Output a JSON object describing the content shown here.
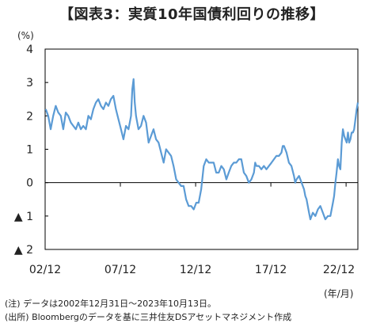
{
  "title": "【図表3：実質10年国債利回りの推移】",
  "unit_label": "(%)",
  "x_unit_label": "(年/月)",
  "notes": [
    "(注) データは2002年12月31日〜2023年10月13日。",
    "(出所) Bloombergのデータを基に三井住友DSアセットマネジメント作成"
  ],
  "chart_data": {
    "type": "line",
    "title": "実質10年国債利回りの推移",
    "xlabel": "(年/月)",
    "ylabel": "(%)",
    "ylim": [
      -2,
      4
    ],
    "xlim": [
      "2002-12-31",
      "2023-10-13"
    ],
    "grid": false,
    "y_ticks": [
      {
        "value": 4,
        "label": "4"
      },
      {
        "value": 3,
        "label": "3"
      },
      {
        "value": 2,
        "label": "2"
      },
      {
        "value": 1,
        "label": "1"
      },
      {
        "value": 0,
        "label": "0"
      },
      {
        "value": -1,
        "label": "▲ 1"
      },
      {
        "value": -2,
        "label": "▲ 2"
      }
    ],
    "x_ticks": [
      {
        "date": "2002-12-31",
        "label": "02/12"
      },
      {
        "date": "2007-12-31",
        "label": "07/12"
      },
      {
        "date": "2012-12-31",
        "label": "12/12"
      },
      {
        "date": "2017-12-31",
        "label": "17/12"
      },
      {
        "date": "2022-12-31",
        "label": "22/12"
      }
    ],
    "line_color": "#5b9bd5",
    "series": [
      {
        "values": [
          [
            "2003-01",
            2.2
          ],
          [
            "2003-03",
            2.0
          ],
          [
            "2003-05",
            1.6
          ],
          [
            "2003-07",
            2.0
          ],
          [
            "2003-09",
            2.3
          ],
          [
            "2003-11",
            2.1
          ],
          [
            "2004-01",
            2.0
          ],
          [
            "2004-03",
            1.6
          ],
          [
            "2004-05",
            2.1
          ],
          [
            "2004-07",
            2.0
          ],
          [
            "2004-09",
            1.8
          ],
          [
            "2004-11",
            1.7
          ],
          [
            "2005-01",
            1.6
          ],
          [
            "2005-03",
            1.8
          ],
          [
            "2005-05",
            1.6
          ],
          [
            "2005-07",
            1.7
          ],
          [
            "2005-09",
            1.6
          ],
          [
            "2005-11",
            2.0
          ],
          [
            "2006-01",
            1.9
          ],
          [
            "2006-03",
            2.2
          ],
          [
            "2006-05",
            2.4
          ],
          [
            "2006-07",
            2.5
          ],
          [
            "2006-09",
            2.3
          ],
          [
            "2006-11",
            2.2
          ],
          [
            "2007-01",
            2.4
          ],
          [
            "2007-03",
            2.3
          ],
          [
            "2007-05",
            2.5
          ],
          [
            "2007-07",
            2.6
          ],
          [
            "2007-09",
            2.2
          ],
          [
            "2007-11",
            1.9
          ],
          [
            "2008-01",
            1.6
          ],
          [
            "2008-03",
            1.3
          ],
          [
            "2008-05",
            1.7
          ],
          [
            "2008-07",
            1.6
          ],
          [
            "2008-09",
            2.0
          ],
          [
            "2008-10",
            2.8
          ],
          [
            "2008-11",
            3.1
          ],
          [
            "2008-12",
            2.4
          ],
          [
            "2009-01",
            2.0
          ],
          [
            "2009-03",
            1.6
          ],
          [
            "2009-05",
            1.7
          ],
          [
            "2009-07",
            2.0
          ],
          [
            "2009-09",
            1.8
          ],
          [
            "2009-11",
            1.2
          ],
          [
            "2010-01",
            1.4
          ],
          [
            "2010-03",
            1.6
          ],
          [
            "2010-05",
            1.3
          ],
          [
            "2010-07",
            1.2
          ],
          [
            "2010-09",
            0.9
          ],
          [
            "2010-11",
            0.6
          ],
          [
            "2011-01",
            1.0
          ],
          [
            "2011-03",
            0.9
          ],
          [
            "2011-05",
            0.8
          ],
          [
            "2011-07",
            0.5
          ],
          [
            "2011-09",
            0.1
          ],
          [
            "2011-11",
            0.0
          ],
          [
            "2012-01",
            -0.1
          ],
          [
            "2012-03",
            -0.1
          ],
          [
            "2012-05",
            -0.5
          ],
          [
            "2012-07",
            -0.7
          ],
          [
            "2012-09",
            -0.7
          ],
          [
            "2012-11",
            -0.8
          ],
          [
            "2013-01",
            -0.6
          ],
          [
            "2013-03",
            -0.6
          ],
          [
            "2013-05",
            -0.2
          ],
          [
            "2013-07",
            0.5
          ],
          [
            "2013-09",
            0.7
          ],
          [
            "2013-11",
            0.6
          ],
          [
            "2014-01",
            0.6
          ],
          [
            "2014-03",
            0.6
          ],
          [
            "2014-05",
            0.3
          ],
          [
            "2014-07",
            0.3
          ],
          [
            "2014-09",
            0.5
          ],
          [
            "2014-11",
            0.4
          ],
          [
            "2015-01",
            0.1
          ],
          [
            "2015-03",
            0.3
          ],
          [
            "2015-05",
            0.5
          ],
          [
            "2015-07",
            0.6
          ],
          [
            "2015-09",
            0.6
          ],
          [
            "2015-11",
            0.7
          ],
          [
            "2016-01",
            0.7
          ],
          [
            "2016-03",
            0.3
          ],
          [
            "2016-05",
            0.2
          ],
          [
            "2016-07",
            0.0
          ],
          [
            "2016-09",
            0.1
          ],
          [
            "2016-11",
            0.3
          ],
          [
            "2016-12",
            0.6
          ],
          [
            "2017-01",
            0.5
          ],
          [
            "2017-03",
            0.5
          ],
          [
            "2017-05",
            0.4
          ],
          [
            "2017-07",
            0.5
          ],
          [
            "2017-09",
            0.4
          ],
          [
            "2017-11",
            0.5
          ],
          [
            "2018-01",
            0.6
          ],
          [
            "2018-03",
            0.7
          ],
          [
            "2018-05",
            0.8
          ],
          [
            "2018-07",
            0.8
          ],
          [
            "2018-09",
            0.9
          ],
          [
            "2018-10",
            1.1
          ],
          [
            "2018-11",
            1.1
          ],
          [
            "2018-12",
            1.0
          ],
          [
            "2019-01",
            0.9
          ],
          [
            "2019-03",
            0.6
          ],
          [
            "2019-05",
            0.5
          ],
          [
            "2019-07",
            0.2
          ],
          [
            "2019-08",
            0.0
          ],
          [
            "2019-09",
            0.1
          ],
          [
            "2019-11",
            0.2
          ],
          [
            "2020-01",
            0.0
          ],
          [
            "2020-03",
            -0.2
          ],
          [
            "2020-04",
            -0.4
          ],
          [
            "2020-05",
            -0.5
          ],
          [
            "2020-07",
            -0.9
          ],
          [
            "2020-08",
            -1.1
          ],
          [
            "2020-10",
            -0.9
          ],
          [
            "2020-12",
            -1.0
          ],
          [
            "2021-02",
            -0.8
          ],
          [
            "2021-04",
            -0.7
          ],
          [
            "2021-06",
            -0.9
          ],
          [
            "2021-08",
            -1.1
          ],
          [
            "2021-10",
            -1.0
          ],
          [
            "2021-12",
            -1.0
          ],
          [
            "2022-02",
            -0.6
          ],
          [
            "2022-03",
            -0.4
          ],
          [
            "2022-04",
            0.0
          ],
          [
            "2022-05",
            0.3
          ],
          [
            "2022-06",
            0.7
          ],
          [
            "2022-07",
            0.5
          ],
          [
            "2022-08",
            0.4
          ],
          [
            "2022-09",
            1.2
          ],
          [
            "2022-10",
            1.6
          ],
          [
            "2022-11",
            1.4
          ],
          [
            "2022-12",
            1.3
          ],
          [
            "2023-01",
            1.2
          ],
          [
            "2023-02",
            1.5
          ],
          [
            "2023-03",
            1.2
          ],
          [
            "2023-04",
            1.3
          ],
          [
            "2023-05",
            1.5
          ],
          [
            "2023-06",
            1.5
          ],
          [
            "2023-07",
            1.6
          ],
          [
            "2023-08",
            1.9
          ],
          [
            "2023-09",
            2.2
          ],
          [
            "2023-10",
            2.4
          ]
        ]
      }
    ]
  }
}
